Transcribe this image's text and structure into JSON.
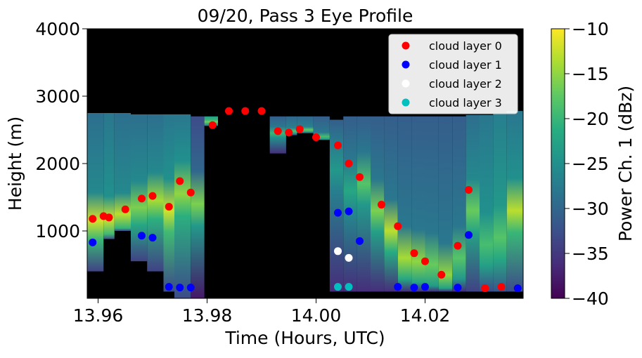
{
  "chart_data": {
    "type": "heatmap",
    "title": "09/20, Pass 3 Eye Profile",
    "xlabel": "Time (Hours, UTC)",
    "ylabel": "Height (m)",
    "xlim": [
      13.958,
      14.038
    ],
    "ylim": [
      0,
      4000
    ],
    "x_ticks": [
      13.96,
      13.98,
      14.0,
      14.02
    ],
    "x_tick_labels": [
      "13.96",
      "13.98",
      "14.00",
      "14.02"
    ],
    "y_ticks": [
      1000,
      2000,
      3000,
      4000
    ],
    "y_tick_labels": [
      "1000",
      "2000",
      "3000",
      "4000"
    ],
    "colorbar": {
      "label": "Power Ch. 1 (dBz)",
      "range": [
        -40,
        -10
      ],
      "ticks": [
        -40,
        -35,
        -30,
        -25,
        -20,
        -15,
        -10
      ],
      "tick_labels": [
        "−40",
        "−35",
        "−30",
        "−25",
        "−20",
        "−15",
        "−10"
      ],
      "colormap": [
        "#440154",
        "#472c7a",
        "#3b518b",
        "#2c718e",
        "#21908d",
        "#27ad81",
        "#5cc863",
        "#aadc32",
        "#fde725"
      ]
    },
    "background_color": "#000000",
    "legend_position": "upper right",
    "series": [
      {
        "name": "cloud layer 0",
        "color": "#ff0000",
        "x": [
          13.959,
          13.961,
          13.962,
          13.965,
          13.968,
          13.97,
          13.973,
          13.975,
          13.977,
          13.981,
          13.984,
          13.987,
          13.99,
          13.993,
          13.995,
          13.997,
          14.0,
          14.004,
          14.006,
          14.008,
          14.012,
          14.015,
          14.018,
          14.02,
          14.023,
          14.026,
          14.028,
          14.031,
          14.034,
          14.037
        ],
        "y": [
          1180,
          1220,
          1200,
          1320,
          1480,
          1520,
          1360,
          1740,
          1570,
          2570,
          2780,
          2780,
          2780,
          2480,
          2460,
          2510,
          2390,
          2270,
          2000,
          1800,
          1390,
          1070,
          670,
          550,
          350,
          780,
          1610,
          150,
          170,
          150
        ]
      },
      {
        "name": "cloud layer 1",
        "color": "#0000ff",
        "x": [
          13.959,
          13.968,
          13.97,
          13.973,
          13.975,
          13.977,
          14.004,
          14.006,
          14.008,
          14.015,
          14.018,
          14.02,
          14.026,
          14.028,
          14.037
        ],
        "y": [
          830,
          930,
          900,
          170,
          160,
          160,
          1270,
          1290,
          850,
          170,
          160,
          170,
          160,
          940,
          150
        ]
      },
      {
        "name": "cloud layer 2",
        "color": "#ffffff",
        "x": [
          14.004,
          14.006
        ],
        "y": [
          700,
          600
        ]
      },
      {
        "name": "cloud layer 3",
        "color": "#00bfbf",
        "x": [
          14.004,
          14.006
        ],
        "y": [
          170,
          170
        ]
      }
    ],
    "heatmap_columns": [
      {
        "x0": 13.958,
        "x1": 13.961,
        "top": 2750,
        "bottom": 400,
        "peak": 1150,
        "peak_value": -12,
        "base_value": -28
      },
      {
        "x0": 13.961,
        "x1": 13.963,
        "top": 2750,
        "bottom": 880,
        "peak": 1180,
        "peak_value": -12,
        "base_value": -27
      },
      {
        "x0": 13.963,
        "x1": 13.966,
        "top": 2750,
        "bottom": 1000,
        "peak": 1250,
        "peak_value": -13,
        "base_value": -28
      },
      {
        "x0": 13.966,
        "x1": 13.969,
        "top": 2730,
        "bottom": 550,
        "peak": 1350,
        "peak_value": -16,
        "base_value": -28
      },
      {
        "x0": 13.969,
        "x1": 13.972,
        "top": 2730,
        "bottom": 400,
        "peak": 1450,
        "peak_value": -14,
        "base_value": -28
      },
      {
        "x0": 13.972,
        "x1": 13.974,
        "top": 2730,
        "bottom": 100,
        "peak": 1300,
        "peak_value": -12,
        "base_value": -27
      },
      {
        "x0": 13.974,
        "x1": 13.977,
        "top": 2730,
        "bottom": 0,
        "peak": 1550,
        "peak_value": -15,
        "base_value": -27
      },
      {
        "x0": 13.977,
        "x1": 13.9795,
        "top": 2700,
        "bottom": 0,
        "peak": 1400,
        "peak_value": -16,
        "base_value": -32
      },
      {
        "x0": 13.9795,
        "x1": 13.982,
        "top": 2700,
        "bottom": 2560,
        "peak": 2620,
        "peak_value": -16,
        "base_value": -22
      },
      {
        "x0": 13.9915,
        "x1": 13.9945,
        "top": 2700,
        "bottom": 2150,
        "peak": 2450,
        "peak_value": -20,
        "base_value": -30
      },
      {
        "x0": 13.9945,
        "x1": 13.9965,
        "top": 2700,
        "bottom": 2420,
        "peak": 2480,
        "peak_value": -18,
        "base_value": -29
      },
      {
        "x0": 13.9965,
        "x1": 13.9995,
        "top": 2700,
        "bottom": 2450,
        "peak": 2500,
        "peak_value": -17,
        "base_value": -29
      },
      {
        "x0": 13.9995,
        "x1": 14.0025,
        "top": 2700,
        "bottom": 2350,
        "peak": 2400,
        "peak_value": -19,
        "base_value": -30
      },
      {
        "x0": 14.0025,
        "x1": 14.005,
        "top": 2650,
        "bottom": 100,
        "peak": 1900,
        "peak_value": -24,
        "base_value": -30
      },
      {
        "x0": 14.005,
        "x1": 14.0075,
        "top": 2700,
        "bottom": 100,
        "peak": 1600,
        "peak_value": -22,
        "base_value": -30
      },
      {
        "x0": 14.0075,
        "x1": 14.01,
        "top": 2700,
        "bottom": 100,
        "peak": 1700,
        "peak_value": -18,
        "base_value": -30
      },
      {
        "x0": 14.01,
        "x1": 14.0125,
        "top": 2700,
        "bottom": 100,
        "peak": 1300,
        "peak_value": -16,
        "base_value": -30
      },
      {
        "x0": 14.0125,
        "x1": 14.015,
        "top": 2700,
        "bottom": 100,
        "peak": 1000,
        "peak_value": -13,
        "base_value": -30
      },
      {
        "x0": 14.015,
        "x1": 14.0175,
        "top": 2700,
        "bottom": 100,
        "peak": 600,
        "peak_value": -14,
        "base_value": -30
      },
      {
        "x0": 14.0175,
        "x1": 14.02,
        "top": 2700,
        "bottom": 100,
        "peak": 550,
        "peak_value": -15,
        "base_value": -30
      },
      {
        "x0": 14.02,
        "x1": 14.0225,
        "top": 2700,
        "bottom": 100,
        "peak": 500,
        "peak_value": -17,
        "base_value": -30
      },
      {
        "x0": 14.0225,
        "x1": 14.025,
        "top": 2700,
        "bottom": 100,
        "peak": 350,
        "peak_value": -15,
        "base_value": -30
      },
      {
        "x0": 14.025,
        "x1": 14.0275,
        "top": 2700,
        "bottom": 100,
        "peak": 600,
        "peak_value": -18,
        "base_value": -30
      },
      {
        "x0": 14.0275,
        "x1": 14.03,
        "top": 2720,
        "bottom": 100,
        "peak": 1300,
        "peak_value": -17,
        "base_value": -28
      },
      {
        "x0": 14.03,
        "x1": 14.0325,
        "top": 2720,
        "bottom": 100,
        "peak": 800,
        "peak_value": -19,
        "base_value": -27
      },
      {
        "x0": 14.0325,
        "x1": 14.035,
        "top": 2750,
        "bottom": 100,
        "peak": 900,
        "peak_value": -18,
        "base_value": -26
      },
      {
        "x0": 14.035,
        "x1": 14.038,
        "top": 2780,
        "bottom": 100,
        "peak": 1300,
        "peak_value": -13,
        "base_value": -27
      }
    ]
  }
}
